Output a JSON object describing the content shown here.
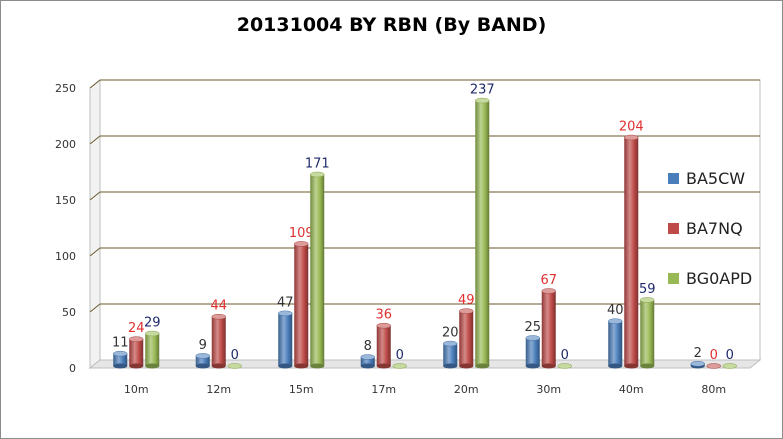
{
  "chart_data": {
    "type": "bar",
    "title": "20131004 BY RBN (By BAND)",
    "xlabel": "",
    "ylabel": "",
    "categories": [
      "10m",
      "12m",
      "15m",
      "17m",
      "20m",
      "30m",
      "40m",
      "80m"
    ],
    "series": [
      {
        "name": "BA5CW",
        "values": [
          11,
          9,
          47,
          8,
          20,
          25,
          40,
          2
        ],
        "color": "#4a7ebb",
        "label_color": "#333333"
      },
      {
        "name": "BA7NQ",
        "values": [
          24,
          44,
          109,
          36,
          49,
          67,
          204,
          0
        ],
        "color": "#be4b48",
        "label_color": "#e03030"
      },
      {
        "name": "BG0APD",
        "values": [
          29,
          0,
          171,
          0,
          237,
          0,
          59,
          0
        ],
        "color": "#98b954",
        "label_color": "#1f2a6b"
      }
    ],
    "ylim": [
      0,
      250
    ],
    "yticks": [
      0,
      50,
      100,
      150,
      200,
      250
    ],
    "grid": true,
    "legend": "right"
  }
}
